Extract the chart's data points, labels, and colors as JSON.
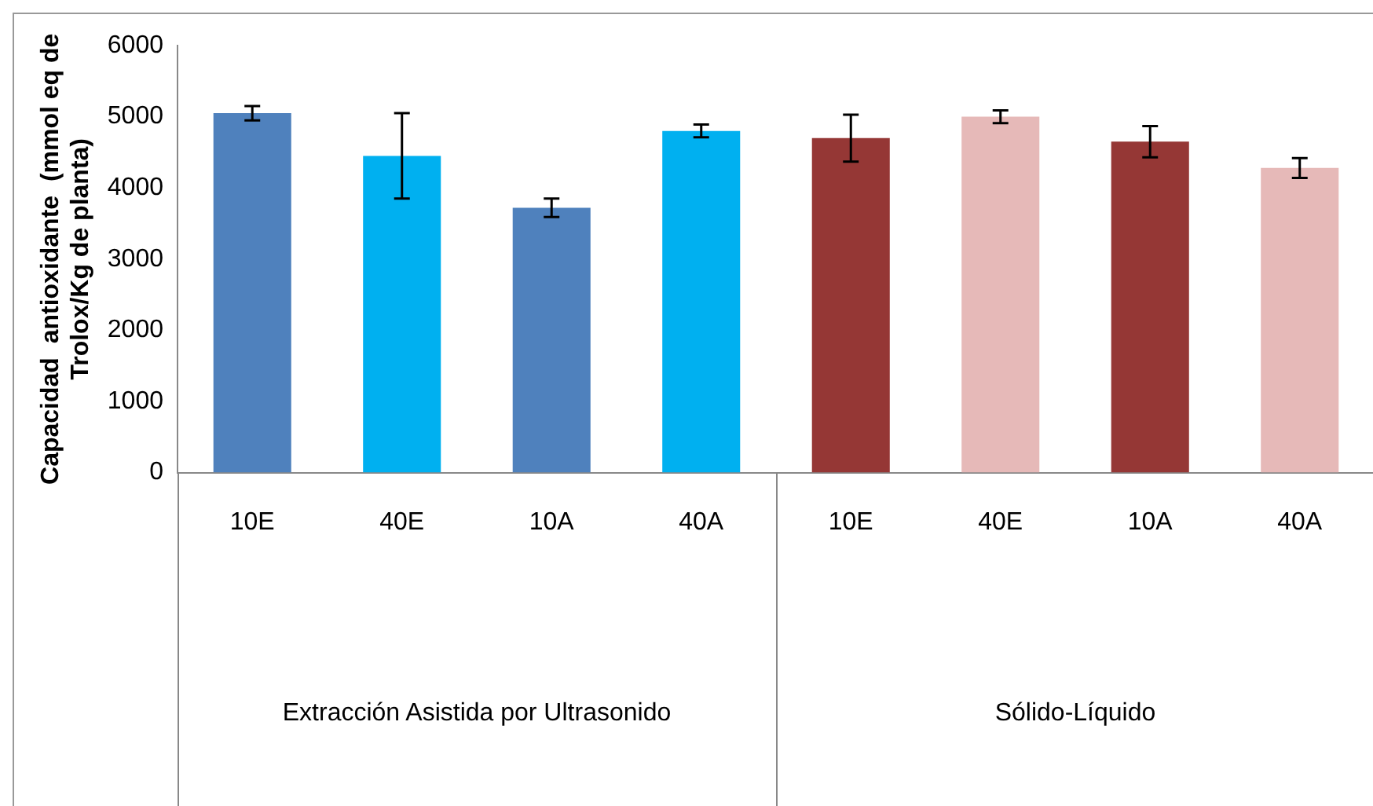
{
  "chart_data": {
    "type": "bar",
    "ylabel": "Capacidad  antioxidante  (mmol eq de Trolox/Kg de planta)",
    "categories": [
      "10E",
      "40E",
      "10A",
      "40A",
      "10E",
      "40E",
      "10A",
      "40A"
    ],
    "values": [
      5050,
      4450,
      3720,
      4800,
      4700,
      5000,
      4650,
      4280
    ],
    "errors": [
      100,
      600,
      130,
      90,
      330,
      90,
      220,
      140
    ],
    "colors": [
      "#4f81bd",
      "#00b0f0",
      "#4f81bd",
      "#00b0f0",
      "#953735",
      "#e6b9b8",
      "#953735",
      "#e6b9b8"
    ],
    "annotations": [
      "Extracción Asistida por Ultrasonido",
      "Sólido-Líquido"
    ],
    "ylim": [
      0,
      6000
    ],
    "yticks": [
      0,
      1000,
      2000,
      3000,
      4000,
      5000,
      6000
    ],
    "grid": false,
    "legend": false
  }
}
